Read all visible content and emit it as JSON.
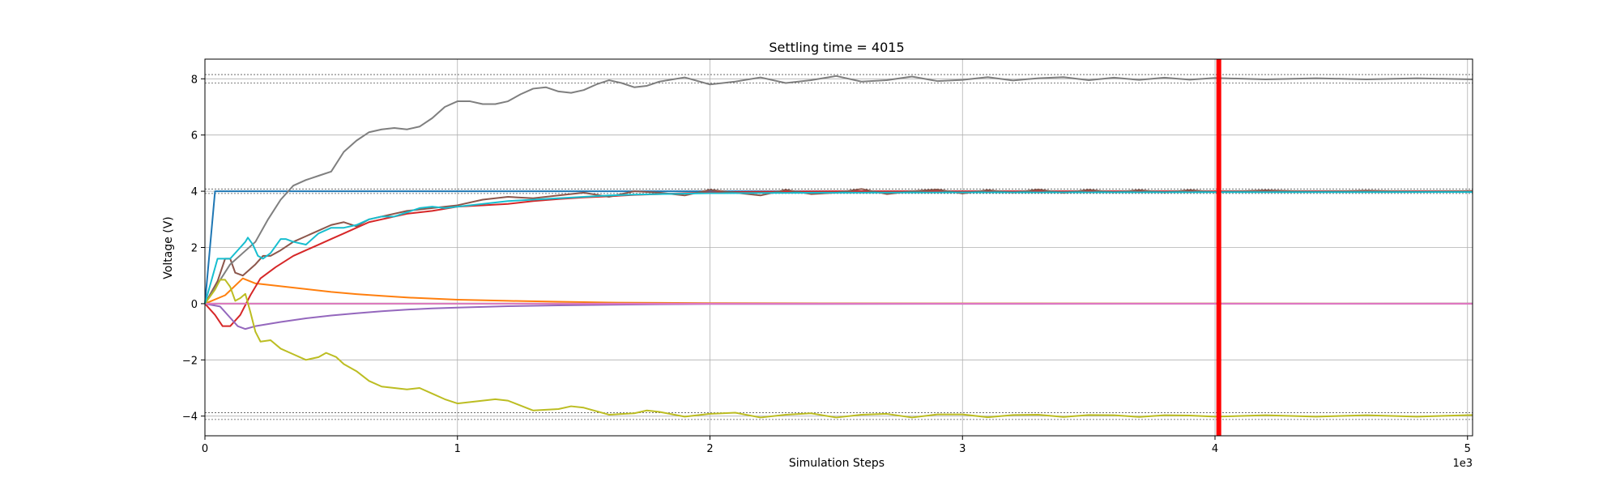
{
  "chart_data": {
    "type": "line",
    "title": "Settling time = 4015",
    "xlabel": "Simulation Steps",
    "ylabel": "Voltage (V)",
    "x_scale_label": "1e3",
    "xlim": [
      0,
      5020
    ],
    "ylim": [
      -4.7,
      8.7
    ],
    "x_ticks": [
      0,
      1000,
      2000,
      3000,
      4000,
      5000
    ],
    "x_tick_labels": [
      "0",
      "1",
      "2",
      "3",
      "4",
      "5"
    ],
    "y_ticks": [
      -4,
      -2,
      0,
      2,
      4,
      6,
      8
    ],
    "y_tick_labels": [
      "−4",
      "−2",
      "0",
      "2",
      "4",
      "6",
      "8"
    ],
    "grid": true,
    "settling_time": 4015,
    "settling_marker_color": "#ff0000",
    "tolerance_bands": [
      {
        "center": 8,
        "tol": 0.15
      },
      {
        "center": 4,
        "tol": 0.08
      },
      {
        "center": -4,
        "tol": 0.12
      }
    ],
    "series": [
      {
        "color": "#1f77b4",
        "points": [
          [
            0,
            0
          ],
          [
            40,
            4.0
          ],
          [
            5020,
            4.0
          ]
        ]
      },
      {
        "color": "#ff7f0e",
        "points": [
          [
            0,
            0
          ],
          [
            80,
            0.3
          ],
          [
            150,
            0.9
          ],
          [
            200,
            0.72
          ],
          [
            300,
            0.62
          ],
          [
            400,
            0.52
          ],
          [
            500,
            0.42
          ],
          [
            600,
            0.34
          ],
          [
            700,
            0.28
          ],
          [
            800,
            0.22
          ],
          [
            900,
            0.18
          ],
          [
            1000,
            0.14
          ],
          [
            1200,
            0.1
          ],
          [
            1400,
            0.07
          ],
          [
            1600,
            0.04
          ],
          [
            1800,
            0.03
          ],
          [
            2000,
            0.02
          ],
          [
            2500,
            0.01
          ],
          [
            5020,
            0.0
          ]
        ]
      },
      {
        "color": "#2ca02c",
        "points": [
          [
            0,
            0
          ],
          [
            5020,
            0
          ]
        ]
      },
      {
        "color": "#d62728",
        "points": [
          [
            0,
            0
          ],
          [
            40,
            -0.4
          ],
          [
            70,
            -0.8
          ],
          [
            100,
            -0.8
          ],
          [
            140,
            -0.4
          ],
          [
            180,
            0.3
          ],
          [
            220,
            0.9
          ],
          [
            280,
            1.3
          ],
          [
            350,
            1.7
          ],
          [
            400,
            1.9
          ],
          [
            450,
            2.1
          ],
          [
            500,
            2.3
          ],
          [
            550,
            2.5
          ],
          [
            600,
            2.7
          ],
          [
            650,
            2.9
          ],
          [
            700,
            3.0
          ],
          [
            800,
            3.2
          ],
          [
            900,
            3.3
          ],
          [
            1000,
            3.45
          ],
          [
            1100,
            3.5
          ],
          [
            1200,
            3.55
          ],
          [
            1300,
            3.65
          ],
          [
            1400,
            3.72
          ],
          [
            1500,
            3.78
          ],
          [
            1600,
            3.82
          ],
          [
            1700,
            3.87
          ],
          [
            1800,
            3.9
          ],
          [
            1900,
            3.93
          ],
          [
            2000,
            3.96
          ],
          [
            2200,
            3.98
          ],
          [
            2500,
            4.0
          ],
          [
            5020,
            4.0
          ]
        ]
      },
      {
        "color": "#9467bd",
        "points": [
          [
            0,
            0
          ],
          [
            60,
            -0.1
          ],
          [
            100,
            -0.5
          ],
          [
            130,
            -0.8
          ],
          [
            160,
            -0.9
          ],
          [
            200,
            -0.8
          ],
          [
            300,
            -0.65
          ],
          [
            400,
            -0.52
          ],
          [
            500,
            -0.42
          ],
          [
            600,
            -0.34
          ],
          [
            700,
            -0.27
          ],
          [
            800,
            -0.21
          ],
          [
            900,
            -0.17
          ],
          [
            1000,
            -0.14
          ],
          [
            1200,
            -0.09
          ],
          [
            1400,
            -0.06
          ],
          [
            1600,
            -0.04
          ],
          [
            1800,
            -0.02
          ],
          [
            2000,
            -0.01
          ],
          [
            5020,
            0.0
          ]
        ]
      },
      {
        "color": "#8c564b",
        "points": [
          [
            0,
            0
          ],
          [
            50,
            0.8
          ],
          [
            80,
            1.6
          ],
          [
            100,
            1.6
          ],
          [
            120,
            1.1
          ],
          [
            150,
            1.0
          ],
          [
            200,
            1.4
          ],
          [
            230,
            1.7
          ],
          [
            260,
            1.7
          ],
          [
            300,
            1.9
          ],
          [
            350,
            2.2
          ],
          [
            400,
            2.4
          ],
          [
            450,
            2.6
          ],
          [
            500,
            2.8
          ],
          [
            550,
            2.9
          ],
          [
            600,
            2.75
          ],
          [
            650,
            3.0
          ],
          [
            700,
            3.1
          ],
          [
            800,
            3.3
          ],
          [
            900,
            3.4
          ],
          [
            1000,
            3.5
          ],
          [
            1100,
            3.7
          ],
          [
            1200,
            3.8
          ],
          [
            1300,
            3.75
          ],
          [
            1400,
            3.85
          ],
          [
            1500,
            3.95
          ],
          [
            1600,
            3.8
          ],
          [
            1700,
            4.0
          ],
          [
            1800,
            3.95
          ],
          [
            1900,
            3.85
          ],
          [
            2000,
            4.05
          ],
          [
            2100,
            3.95
          ],
          [
            2200,
            3.85
          ],
          [
            2300,
            4.05
          ],
          [
            2400,
            3.9
          ],
          [
            2500,
            3.95
          ],
          [
            2600,
            4.08
          ],
          [
            2700,
            3.9
          ],
          [
            2800,
            4.0
          ],
          [
            2900,
            4.06
          ],
          [
            3000,
            3.92
          ],
          [
            3100,
            4.04
          ],
          [
            3200,
            3.95
          ],
          [
            3300,
            4.06
          ],
          [
            3400,
            3.94
          ],
          [
            3500,
            4.05
          ],
          [
            3600,
            3.96
          ],
          [
            3700,
            4.04
          ],
          [
            3800,
            3.96
          ],
          [
            3900,
            4.04
          ],
          [
            4000,
            3.97
          ],
          [
            4200,
            4.03
          ],
          [
            4400,
            3.98
          ],
          [
            4600,
            4.02
          ],
          [
            4800,
            3.98
          ],
          [
            5020,
            4.01
          ]
        ]
      },
      {
        "color": "#e377c2",
        "points": [
          [
            0,
            0
          ],
          [
            5020,
            0
          ]
        ]
      },
      {
        "color": "#7f7f7f",
        "points": [
          [
            0,
            0
          ],
          [
            100,
            1.4
          ],
          [
            150,
            1.8
          ],
          [
            200,
            2.2
          ],
          [
            250,
            3.0
          ],
          [
            300,
            3.7
          ],
          [
            350,
            4.2
          ],
          [
            400,
            4.4
          ],
          [
            450,
            4.55
          ],
          [
            500,
            4.7
          ],
          [
            550,
            5.4
          ],
          [
            600,
            5.8
          ],
          [
            650,
            6.1
          ],
          [
            700,
            6.2
          ],
          [
            750,
            6.25
          ],
          [
            800,
            6.2
          ],
          [
            850,
            6.3
          ],
          [
            900,
            6.6
          ],
          [
            950,
            7.0
          ],
          [
            1000,
            7.2
          ],
          [
            1050,
            7.2
          ],
          [
            1100,
            7.1
          ],
          [
            1150,
            7.1
          ],
          [
            1200,
            7.2
          ],
          [
            1250,
            7.45
          ],
          [
            1300,
            7.65
          ],
          [
            1350,
            7.7
          ],
          [
            1400,
            7.55
          ],
          [
            1450,
            7.5
          ],
          [
            1500,
            7.6
          ],
          [
            1550,
            7.8
          ],
          [
            1600,
            7.95
          ],
          [
            1650,
            7.85
          ],
          [
            1700,
            7.7
          ],
          [
            1750,
            7.75
          ],
          [
            1800,
            7.9
          ],
          [
            1900,
            8.05
          ],
          [
            2000,
            7.8
          ],
          [
            2100,
            7.9
          ],
          [
            2200,
            8.05
          ],
          [
            2300,
            7.85
          ],
          [
            2400,
            7.95
          ],
          [
            2500,
            8.1
          ],
          [
            2600,
            7.9
          ],
          [
            2700,
            7.95
          ],
          [
            2800,
            8.08
          ],
          [
            2900,
            7.92
          ],
          [
            3000,
            7.96
          ],
          [
            3100,
            8.06
          ],
          [
            3200,
            7.94
          ],
          [
            3300,
            8.02
          ],
          [
            3400,
            8.06
          ],
          [
            3500,
            7.95
          ],
          [
            3600,
            8.04
          ],
          [
            3700,
            7.96
          ],
          [
            3800,
            8.04
          ],
          [
            3900,
            7.97
          ],
          [
            4000,
            8.03
          ],
          [
            4200,
            7.98
          ],
          [
            4400,
            8.02
          ],
          [
            4600,
            7.98
          ],
          [
            4800,
            8.02
          ],
          [
            5020,
            7.98
          ]
        ]
      },
      {
        "color": "#bcbd22",
        "points": [
          [
            0,
            0
          ],
          [
            40,
            0.5
          ],
          [
            60,
            0.85
          ],
          [
            80,
            0.85
          ],
          [
            100,
            0.6
          ],
          [
            120,
            0.1
          ],
          [
            140,
            0.2
          ],
          [
            160,
            0.35
          ],
          [
            180,
            -0.3
          ],
          [
            200,
            -1.0
          ],
          [
            220,
            -1.35
          ],
          [
            260,
            -1.3
          ],
          [
            300,
            -1.6
          ],
          [
            350,
            -1.8
          ],
          [
            400,
            -2.0
          ],
          [
            450,
            -1.9
          ],
          [
            480,
            -1.75
          ],
          [
            520,
            -1.9
          ],
          [
            550,
            -2.15
          ],
          [
            600,
            -2.4
          ],
          [
            650,
            -2.75
          ],
          [
            700,
            -2.95
          ],
          [
            750,
            -3.0
          ],
          [
            800,
            -3.05
          ],
          [
            850,
            -3.0
          ],
          [
            900,
            -3.2
          ],
          [
            950,
            -3.4
          ],
          [
            1000,
            -3.55
          ],
          [
            1050,
            -3.5
          ],
          [
            1100,
            -3.45
          ],
          [
            1150,
            -3.4
          ],
          [
            1200,
            -3.45
          ],
          [
            1300,
            -3.8
          ],
          [
            1400,
            -3.75
          ],
          [
            1450,
            -3.65
          ],
          [
            1500,
            -3.7
          ],
          [
            1600,
            -3.95
          ],
          [
            1700,
            -3.9
          ],
          [
            1750,
            -3.8
          ],
          [
            1800,
            -3.85
          ],
          [
            1900,
            -4.02
          ],
          [
            2000,
            -3.92
          ],
          [
            2100,
            -3.88
          ],
          [
            2200,
            -4.05
          ],
          [
            2300,
            -3.95
          ],
          [
            2400,
            -3.9
          ],
          [
            2500,
            -4.05
          ],
          [
            2600,
            -3.95
          ],
          [
            2700,
            -3.92
          ],
          [
            2800,
            -4.05
          ],
          [
            2900,
            -3.94
          ],
          [
            3000,
            -3.94
          ],
          [
            3100,
            -4.04
          ],
          [
            3200,
            -3.96
          ],
          [
            3300,
            -3.95
          ],
          [
            3400,
            -4.03
          ],
          [
            3500,
            -3.96
          ],
          [
            3600,
            -3.97
          ],
          [
            3700,
            -4.03
          ],
          [
            3800,
            -3.97
          ],
          [
            3900,
            -3.98
          ],
          [
            4000,
            -4.02
          ],
          [
            4200,
            -3.97
          ],
          [
            4400,
            -4.02
          ],
          [
            4600,
            -3.97
          ],
          [
            4800,
            -4.02
          ],
          [
            5020,
            -3.96
          ]
        ]
      },
      {
        "color": "#17becf",
        "points": [
          [
            0,
            0
          ],
          [
            50,
            1.6
          ],
          [
            100,
            1.6
          ],
          [
            140,
            2.0
          ],
          [
            160,
            2.2
          ],
          [
            170,
            2.35
          ],
          [
            190,
            2.1
          ],
          [
            210,
            1.7
          ],
          [
            230,
            1.6
          ],
          [
            260,
            1.8
          ],
          [
            300,
            2.3
          ],
          [
            320,
            2.3
          ],
          [
            350,
            2.2
          ],
          [
            400,
            2.1
          ],
          [
            450,
            2.5
          ],
          [
            500,
            2.7
          ],
          [
            550,
            2.7
          ],
          [
            600,
            2.8
          ],
          [
            650,
            3.0
          ],
          [
            700,
            3.1
          ],
          [
            750,
            3.1
          ],
          [
            800,
            3.25
          ],
          [
            850,
            3.4
          ],
          [
            900,
            3.45
          ],
          [
            950,
            3.4
          ],
          [
            1000,
            3.45
          ],
          [
            1100,
            3.55
          ],
          [
            1200,
            3.65
          ],
          [
            1300,
            3.7
          ],
          [
            1400,
            3.75
          ],
          [
            1500,
            3.8
          ],
          [
            1600,
            3.85
          ],
          [
            1700,
            3.88
          ],
          [
            1800,
            3.9
          ],
          [
            2000,
            3.93
          ],
          [
            2500,
            3.95
          ],
          [
            3000,
            3.96
          ],
          [
            5020,
            3.97
          ]
        ]
      }
    ]
  }
}
